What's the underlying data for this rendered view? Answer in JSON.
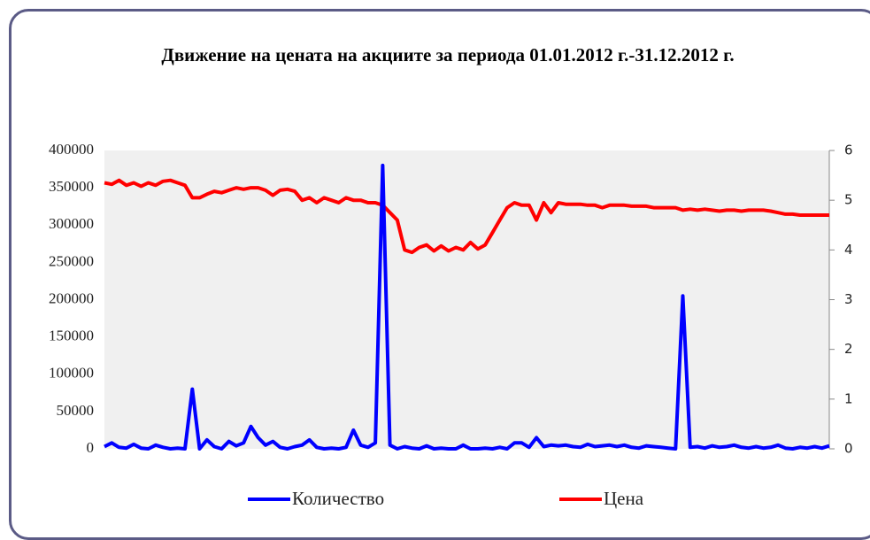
{
  "chart_data": {
    "type": "line",
    "title": "Движение на цената на акциите за периода 01.01.2012 г.-31.12.2012 г.",
    "ylim": [
      0,
      400000
    ],
    "yticks": [
      0,
      50000,
      100000,
      150000,
      200000,
      250000,
      300000,
      350000,
      400000
    ],
    "y2lim": [
      0,
      6
    ],
    "y2ticks": [
      0,
      1,
      2,
      3,
      4,
      5,
      6
    ],
    "background": "#f0f0f0",
    "legend": "bottom",
    "series": [
      {
        "name": "Количество",
        "color": "#0000ff",
        "values": [
          3000,
          8000,
          2000,
          1000,
          6000,
          1000,
          0,
          5000,
          2000,
          0,
          1000,
          0,
          80000,
          0,
          12000,
          3000,
          0,
          10000,
          4000,
          8000,
          30000,
          15000,
          5000,
          10000,
          2000,
          0,
          3000,
          5000,
          12000,
          2000,
          0,
          1000,
          0,
          2000,
          25000,
          5000,
          2000,
          8000,
          380000,
          5000,
          0,
          3000,
          1000,
          0,
          4000,
          0,
          1000,
          0,
          0,
          5000,
          0,
          0,
          1000,
          0,
          2000,
          0,
          8000,
          8000,
          2000,
          15000,
          3000,
          5000,
          4000,
          5000,
          3000,
          2000,
          6000,
          3000,
          4000,
          5000,
          3000,
          5000,
          2000,
          1000,
          4000,
          3000,
          2000,
          1000,
          0,
          205000,
          2000,
          3000,
          1000,
          4000,
          2000,
          3000,
          5000,
          2000,
          1000,
          3000,
          1000,
          2000,
          5000,
          1000,
          0,
          2000,
          1000,
          3000,
          1000,
          4000
        ]
      },
      {
        "name": "Цена",
        "color": "#ff0000",
        "axis": "y2",
        "values": [
          5.35,
          5.32,
          5.4,
          5.3,
          5.35,
          5.28,
          5.35,
          5.3,
          5.38,
          5.4,
          5.35,
          5.3,
          5.05,
          5.05,
          5.12,
          5.18,
          5.15,
          5.2,
          5.25,
          5.22,
          5.25,
          5.25,
          5.2,
          5.1,
          5.2,
          5.22,
          5.18,
          5.0,
          5.05,
          4.95,
          5.05,
          5.0,
          4.95,
          5.05,
          5.0,
          5.0,
          4.95,
          4.95,
          4.9,
          4.75,
          4.6,
          4.0,
          3.95,
          4.05,
          4.1,
          3.98,
          4.08,
          3.98,
          4.05,
          4.0,
          4.15,
          4.02,
          4.1,
          4.35,
          4.6,
          4.85,
          4.95,
          4.9,
          4.9,
          4.6,
          4.95,
          4.75,
          4.95,
          4.92,
          4.92,
          4.92,
          4.9,
          4.9,
          4.85,
          4.9,
          4.9,
          4.9,
          4.88,
          4.88,
          4.88,
          4.85,
          4.85,
          4.85,
          4.85,
          4.8,
          4.82,
          4.8,
          4.82,
          4.8,
          4.78,
          4.8,
          4.8,
          4.78,
          4.8,
          4.8,
          4.8,
          4.78,
          4.75,
          4.72,
          4.72,
          4.7,
          4.7,
          4.7,
          4.7,
          4.7
        ]
      }
    ]
  }
}
